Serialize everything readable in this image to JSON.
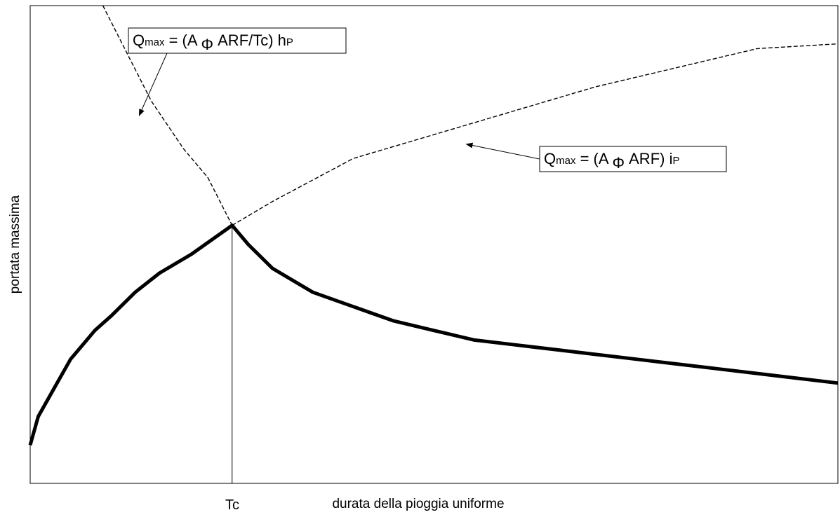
{
  "chart_data": {
    "type": "line",
    "title": "",
    "xlabel": "durata della pioggia uniforme",
    "ylabel": "portata massima",
    "x_tick_labels": [
      "Tc"
    ],
    "grid": false,
    "legend": "none",
    "series": [
      {
        "style": "dashed-thin",
        "color": "#000000",
        "x": [
          0.09,
          0.12,
          0.135,
          0.15,
          0.17,
          0.19,
          0.22,
          0.25
        ],
        "y": [
          1.0,
          0.9,
          0.85,
          0.8,
          0.75,
          0.7,
          0.64,
          0.54
        ]
      },
      {
        "style": "dashed-thin",
        "color": "#000000",
        "x": [
          0.25,
          0.3,
          0.4,
          0.5,
          0.6,
          0.7,
          0.8,
          0.9,
          1.0
        ],
        "y": [
          0.54,
          0.59,
          0.68,
          0.73,
          0.78,
          0.83,
          0.87,
          0.91,
          0.92
        ]
      },
      {
        "style": "solid-thick",
        "color": "#000000",
        "x": [
          0.0,
          0.01,
          0.03,
          0.05,
          0.08,
          0.1,
          0.13,
          0.16,
          0.2,
          0.25,
          0.27,
          0.3,
          0.35,
          0.4,
          0.45,
          0.5,
          0.55,
          0.6,
          0.65,
          0.7,
          0.75,
          0.8,
          0.85,
          0.9,
          0.95,
          1.0
        ],
        "y": [
          0.08,
          0.14,
          0.2,
          0.26,
          0.32,
          0.35,
          0.4,
          0.44,
          0.48,
          0.54,
          0.5,
          0.45,
          0.4,
          0.37,
          0.34,
          0.32,
          0.3,
          0.29,
          0.28,
          0.27,
          0.26,
          0.25,
          0.24,
          0.23,
          0.22,
          0.21
        ]
      }
    ],
    "annotations": [
      {
        "q": "Q",
        "q_sub": "max",
        "body": " = (A ",
        "symbol": "Φ",
        "body2": " ARF/Tc) h",
        "sub": "P",
        "target": {
          "x": 0.135,
          "y": 0.77
        }
      },
      {
        "q": "Q",
        "q_sub": "max",
        "body": " = (A ",
        "symbol": "Φ",
        "body2": " ARF) i",
        "sub": "P",
        "target": {
          "x": 0.54,
          "y": 0.71
        }
      }
    ],
    "x_marker": {
      "x": 0.25,
      "label": "Tc"
    }
  }
}
